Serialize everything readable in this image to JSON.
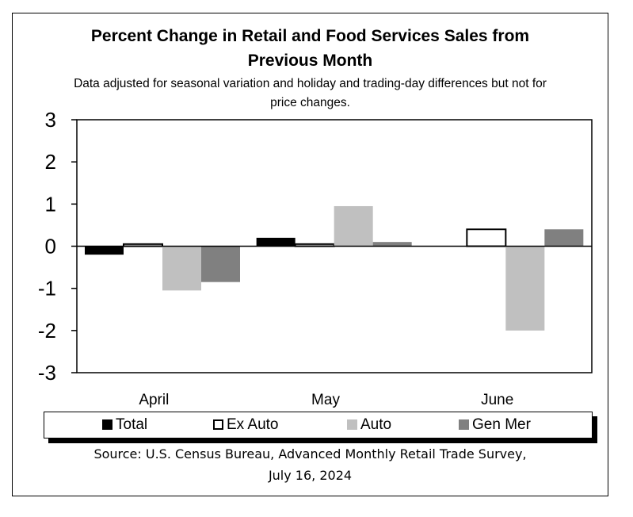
{
  "chart_data": {
    "type": "bar",
    "title": "Percent Change in Retail and Food Services Sales from Previous Month",
    "title_line1": "Percent Change in Retail and Food Services Sales from",
    "title_line2": "Previous Month",
    "subtitle_line1": "Data adjusted for seasonal variation and holiday and trading-day differences but not for",
    "subtitle_line2": "price changes.",
    "categories": [
      "April",
      "May",
      "June"
    ],
    "series": [
      {
        "name": "Total",
        "color": "#000000",
        "values": [
          -0.2,
          0.2,
          0.0
        ]
      },
      {
        "name": "Ex Auto",
        "color": "#ffffff",
        "values": [
          0.05,
          0.05,
          0.4
        ]
      },
      {
        "name": "Auto",
        "color": "#c0c0c0",
        "values": [
          -1.05,
          0.95,
          -2.0
        ]
      },
      {
        "name": "Gen Mer",
        "color": "#808080",
        "values": [
          -0.85,
          0.1,
          0.4
        ]
      }
    ],
    "ylim": [
      -3,
      3
    ],
    "yticks": [
      "3",
      "2",
      "1",
      "0",
      "-1",
      "-2",
      "-3"
    ],
    "xlabel": "",
    "ylabel": "",
    "legend_position": "bottom"
  },
  "source_line1": "Source: U.S. Census Bureau, Advanced Monthly Retail Trade Survey,",
  "source_line2": "July 16, 2024"
}
